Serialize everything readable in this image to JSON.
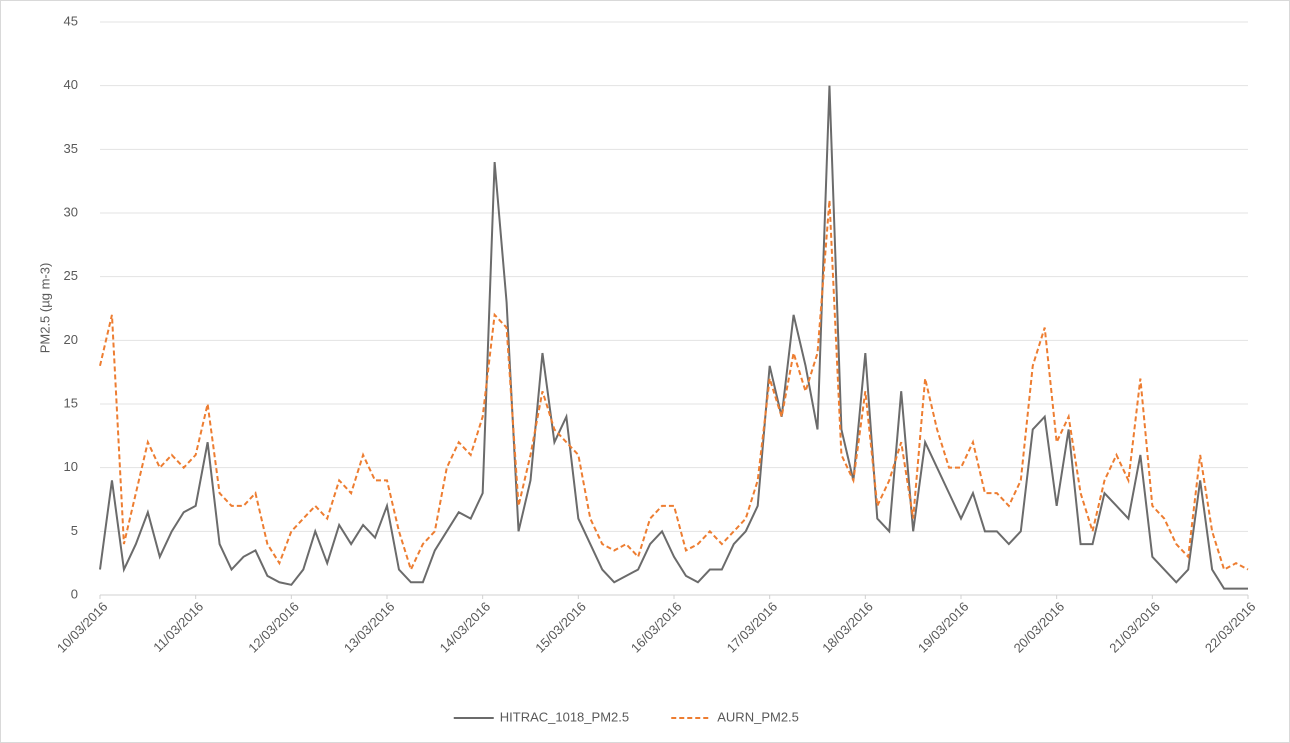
{
  "chart_data": {
    "type": "line",
    "ylabel": "PM2.5 (µg m-3)",
    "x": [
      0,
      3,
      6,
      9,
      12,
      15,
      18,
      21,
      24,
      27,
      30,
      33,
      36,
      39,
      42,
      45,
      48,
      51,
      54,
      57,
      60,
      63,
      66,
      69,
      72,
      75,
      78,
      81,
      84,
      87,
      90,
      93,
      96,
      99,
      102,
      105,
      108,
      111,
      114,
      117,
      120,
      123,
      126,
      129,
      132,
      135,
      138,
      141,
      144,
      147,
      150,
      153,
      156,
      159,
      162,
      165,
      168,
      171,
      174,
      177,
      180,
      183,
      186,
      189,
      192,
      195,
      198,
      201,
      204,
      207,
      210,
      213,
      216,
      219,
      222,
      225,
      228,
      231,
      234,
      237,
      240,
      243,
      246,
      249,
      252,
      255,
      258,
      261,
      264,
      267,
      270,
      273,
      276,
      279,
      282,
      285,
      288
    ],
    "xlim": [
      0,
      288
    ],
    "xticks": [
      {
        "value": 0,
        "label": "10/03/2016"
      },
      {
        "value": 24,
        "label": "11/03/2016"
      },
      {
        "value": 48,
        "label": "12/03/2016"
      },
      {
        "value": 72,
        "label": "13/03/2016"
      },
      {
        "value": 96,
        "label": "14/03/2016"
      },
      {
        "value": 120,
        "label": "15/03/2016"
      },
      {
        "value": 144,
        "label": "16/03/2016"
      },
      {
        "value": 168,
        "label": "17/03/2016"
      },
      {
        "value": 192,
        "label": "18/03/2016"
      },
      {
        "value": 216,
        "label": "19/03/2016"
      },
      {
        "value": 240,
        "label": "20/03/2016"
      },
      {
        "value": 264,
        "label": "21/03/2016"
      },
      {
        "value": 288,
        "label": "22/03/2016"
      }
    ],
    "ylim": [
      0,
      45
    ],
    "yticks": [
      0,
      5,
      10,
      15,
      20,
      25,
      30,
      35,
      40,
      45
    ],
    "grid": true,
    "legend": "bottom",
    "series": [
      {
        "name": "HITRAC_1018_PM2.5",
        "color": "#6b6b6b",
        "dash": false,
        "values": [
          2,
          9,
          2,
          4,
          6.5,
          3,
          5,
          6.5,
          7,
          12,
          4,
          2,
          3,
          3.5,
          1.5,
          1,
          0.8,
          2,
          5,
          2.5,
          5.5,
          4,
          5.5,
          4.5,
          7,
          2,
          1,
          1,
          3.5,
          5,
          6.5,
          6,
          8,
          34,
          23,
          5,
          9,
          19,
          12,
          14,
          6,
          4,
          2,
          1,
          1.5,
          2,
          4,
          5,
          3,
          1.5,
          1,
          2,
          2,
          4,
          5,
          7,
          18,
          14,
          22,
          18,
          13,
          40,
          13,
          9,
          19,
          6,
          5,
          16,
          5,
          12,
          10,
          8,
          6,
          8,
          5,
          5,
          4,
          5,
          13,
          14,
          7,
          13,
          4,
          4,
          8,
          7,
          6,
          11,
          3,
          2,
          1,
          2,
          9,
          2,
          0.5,
          0.5,
          0.5
        ]
      },
      {
        "name": "AURN_PM2.5",
        "color": "#ed7d31",
        "dash": true,
        "values": [
          18,
          22,
          4,
          8,
          12,
          10,
          11,
          10,
          11,
          15,
          8,
          7,
          7,
          8,
          4,
          2.5,
          5,
          6,
          7,
          6,
          9,
          8,
          11,
          9,
          9,
          5,
          2,
          4,
          5,
          10,
          12,
          11,
          14,
          22,
          21,
          7,
          11,
          16,
          13,
          12,
          11,
          6,
          4,
          3.5,
          4,
          3,
          6,
          7,
          7,
          3.5,
          4,
          5,
          4,
          5,
          6,
          9,
          17,
          14,
          19,
          16,
          19,
          31,
          11,
          9,
          16,
          7,
          9,
          12,
          6,
          17,
          13,
          10,
          10,
          12,
          8,
          8,
          7,
          9,
          18,
          21,
          12,
          14,
          8,
          5,
          9,
          11,
          9,
          17,
          7,
          6,
          4,
          3,
          11,
          5,
          2,
          2.5,
          2
        ]
      }
    ]
  }
}
